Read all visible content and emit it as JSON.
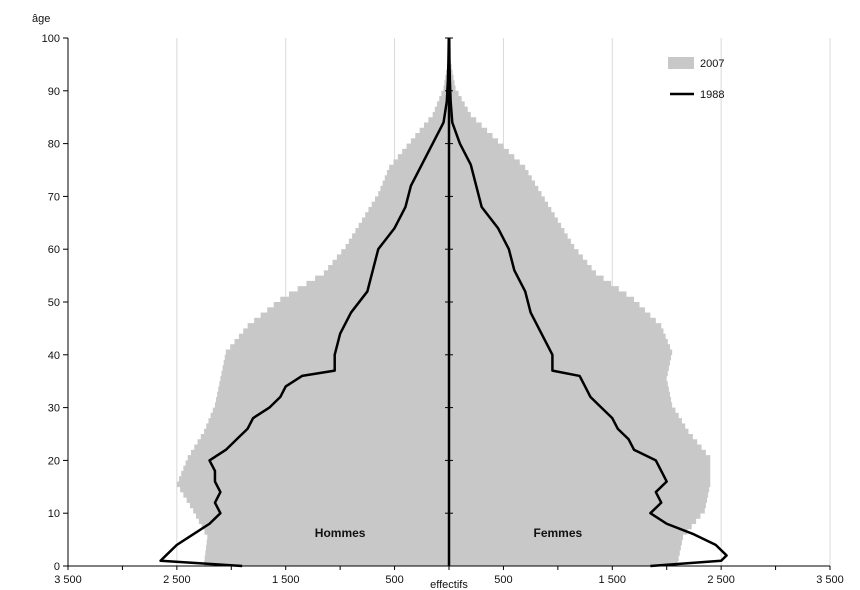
{
  "chart_data": {
    "type": "bar",
    "subtype": "population-pyramid",
    "title": "",
    "ylabel": "âge",
    "xlabel": "effectifs",
    "ylim": [
      0,
      100
    ],
    "xlim": [
      -3500,
      3500
    ],
    "yticks": [
      0,
      10,
      20,
      30,
      40,
      50,
      60,
      70,
      80,
      90,
      100
    ],
    "xticks": [
      -3500,
      -2500,
      -1500,
      -500,
      500,
      1500,
      2500,
      3500
    ],
    "xtick_labels": [
      "3 500",
      "2 500",
      "1 500",
      "500",
      "500",
      "1 500",
      "2 500",
      "3 500"
    ],
    "grid": {
      "vertical": true,
      "horizontal": false
    },
    "legend_position": "top-right",
    "side_labels": {
      "left": "Hommes",
      "right": "Femmes"
    },
    "colors": {
      "bars_2007": "#c8c8c8",
      "line_1988": "#000000",
      "grid": "#d9d9d9"
    },
    "series": [
      {
        "name": "2007",
        "render": "bars",
        "ages": [
          0,
          5,
          10,
          15,
          20,
          25,
          30,
          35,
          40,
          45,
          50,
          55,
          60,
          65,
          70,
          75,
          80,
          85,
          90,
          95
        ],
        "hommes": [
          2250,
          2220,
          2350,
          2500,
          2400,
          2250,
          2150,
          2100,
          2050,
          1850,
          1550,
          1150,
          950,
          800,
          650,
          550,
          350,
          150,
          50,
          10
        ],
        "femmes": [
          2100,
          2150,
          2350,
          2400,
          2400,
          2200,
          2050,
          2000,
          2050,
          1950,
          1700,
          1350,
          1150,
          1000,
          850,
          700,
          450,
          200,
          60,
          15
        ]
      },
      {
        "name": "1988",
        "render": "line",
        "ages": [
          0,
          1,
          2,
          4,
          6,
          8,
          10,
          12,
          14,
          16,
          18,
          20,
          22,
          24,
          26,
          28,
          30,
          32,
          34,
          36,
          37,
          40,
          44,
          48,
          52,
          56,
          60,
          64,
          68,
          72,
          76,
          80,
          84,
          88,
          92,
          96,
          100
        ],
        "hommes": [
          1900,
          2650,
          2600,
          2500,
          2350,
          2200,
          2100,
          2150,
          2100,
          2150,
          2150,
          2200,
          2050,
          1950,
          1850,
          1800,
          1650,
          1550,
          1500,
          1350,
          1050,
          1050,
          1000,
          900,
          750,
          700,
          650,
          500,
          400,
          350,
          250,
          150,
          50,
          20,
          10,
          5,
          2
        ],
        "femmes": [
          1850,
          2500,
          2550,
          2450,
          2250,
          2000,
          1850,
          1950,
          1900,
          2000,
          1950,
          1900,
          1700,
          1650,
          1550,
          1500,
          1400,
          1300,
          1250,
          1200,
          950,
          950,
          850,
          750,
          700,
          600,
          550,
          450,
          300,
          250,
          200,
          100,
          30,
          15,
          8,
          4,
          2
        ]
      }
    ]
  }
}
